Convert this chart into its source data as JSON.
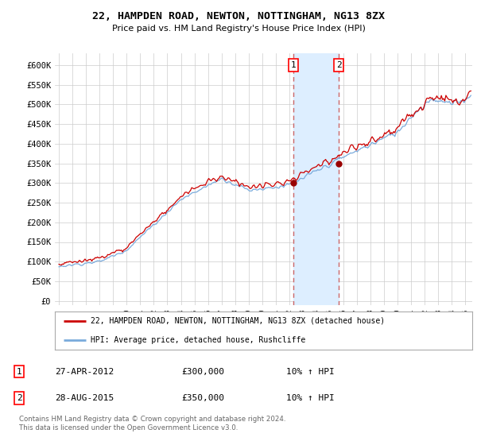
{
  "title": "22, HAMPDEN ROAD, NEWTON, NOTTINGHAM, NG13 8ZX",
  "subtitle": "Price paid vs. HM Land Registry's House Price Index (HPI)",
  "ylim": [
    0,
    620000
  ],
  "xlim_start": 1994.7,
  "xlim_end": 2025.5,
  "sale1_x": 2012.32,
  "sale1_y": 300000,
  "sale2_x": 2015.65,
  "sale2_y": 350000,
  "legend_line1": "22, HAMPDEN ROAD, NEWTON, NOTTINGHAM, NG13 8ZX (detached house)",
  "legend_line2": "HPI: Average price, detached house, Rushcliffe",
  "annotation1_date": "27-APR-2012",
  "annotation1_price": "£300,000",
  "annotation1_hpi": "10% ↑ HPI",
  "annotation2_date": "28-AUG-2015",
  "annotation2_price": "£350,000",
  "annotation2_hpi": "10% ↑ HPI",
  "footer": "Contains HM Land Registry data © Crown copyright and database right 2024.\nThis data is licensed under the Open Government Licence v3.0.",
  "line_color_red": "#cc0000",
  "line_color_blue": "#7aabdc",
  "shade_color": "#ddeeff",
  "grid_color": "#cccccc",
  "bg_color": "#ffffff"
}
